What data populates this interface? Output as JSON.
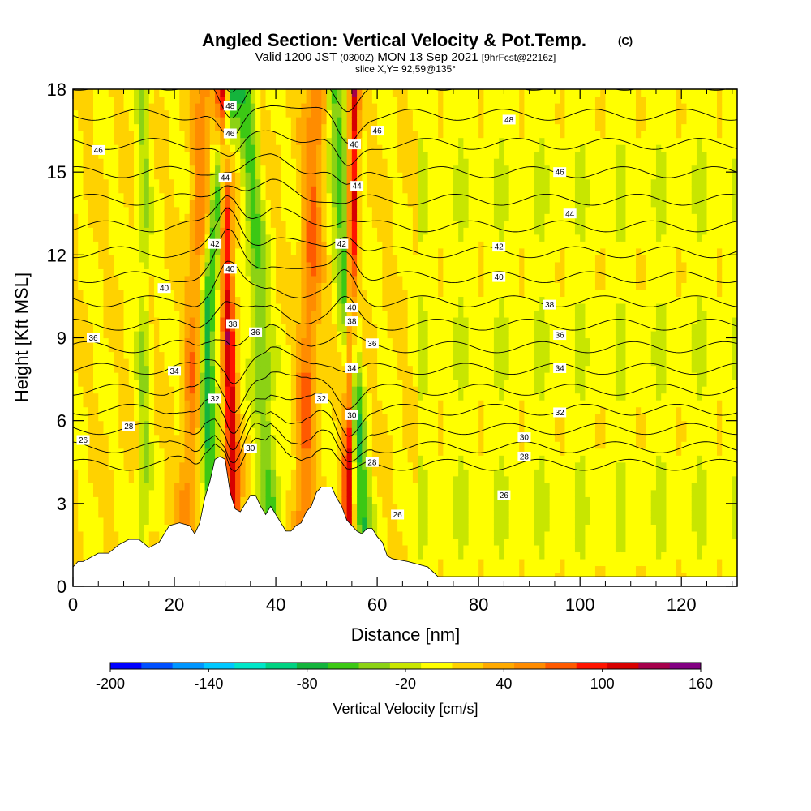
{
  "chart_data": {
    "type": "heatmap",
    "title": "Angled Section: Vertical Velocity & Pot.Temp.",
    "title_unit": "(C)",
    "subtitle": {
      "prefix": "Valid 1200 JST",
      "zulu": "(0300Z)",
      "date": "MON 13 Sep 2021",
      "forecast": "[9hrFcst@2216z]"
    },
    "slice_label": "slice X,Y= 92,59@135°",
    "xlabel": "Distance [nm]",
    "ylabel": "Height [Kft MSL]",
    "xlim": [
      0,
      131
    ],
    "ylim": [
      0,
      18
    ],
    "x_ticks": [
      0,
      20,
      40,
      60,
      80,
      100,
      120
    ],
    "y_ticks": [
      0,
      3,
      6,
      9,
      12,
      15,
      18
    ],
    "colorbar": {
      "title": "Vertical Velocity [cm/s]",
      "min": -200,
      "max": 160,
      "step": 20,
      "tick_values": [
        -200,
        -140,
        -80,
        -20,
        40,
        100,
        160
      ],
      "tick_labels": [
        "-200",
        "-140",
        "-80",
        "-20",
        "40",
        "100",
        "160"
      ],
      "colors": [
        "#0000ff",
        "#0050ff",
        "#0096ff",
        "#00c8ff",
        "#00e6c8",
        "#00d282",
        "#14b43c",
        "#3cc814",
        "#8cd214",
        "#c8e600",
        "#ffff00",
        "#ffd200",
        "#ffaa00",
        "#ff8c00",
        "#ff5a00",
        "#ff1400",
        "#d70000",
        "#a5004b",
        "#820082"
      ]
    },
    "terrain": [
      [
        0,
        0.7
      ],
      [
        1,
        0.9
      ],
      [
        2,
        0.9
      ],
      [
        5,
        1.2
      ],
      [
        7,
        1.2
      ],
      [
        9,
        1.5
      ],
      [
        11,
        1.7
      ],
      [
        13,
        1.7
      ],
      [
        15,
        1.4
      ],
      [
        17,
        1.6
      ],
      [
        19,
        2.2
      ],
      [
        21,
        2.3
      ],
      [
        23,
        2.2
      ],
      [
        24,
        1.9
      ],
      [
        25,
        2.3
      ],
      [
        26,
        3.2
      ],
      [
        27,
        3.8
      ],
      [
        28,
        4.6
      ],
      [
        29,
        4.7
      ],
      [
        30,
        4.6
      ],
      [
        31,
        3.4
      ],
      [
        32,
        2.8
      ],
      [
        33,
        2.7
      ],
      [
        34,
        3.0
      ],
      [
        35,
        3.3
      ],
      [
        36,
        3.3
      ],
      [
        37,
        2.9
      ],
      [
        38,
        2.6
      ],
      [
        39,
        2.9
      ],
      [
        40,
        2.6
      ],
      [
        41,
        2.3
      ],
      [
        42,
        2.0
      ],
      [
        43,
        2.0
      ],
      [
        44,
        2.2
      ],
      [
        45,
        2.3
      ],
      [
        46,
        2.7
      ],
      [
        47,
        2.9
      ],
      [
        48,
        3.4
      ],
      [
        49,
        3.6
      ],
      [
        50,
        3.6
      ],
      [
        51,
        3.6
      ],
      [
        52,
        3.2
      ],
      [
        53,
        2.9
      ],
      [
        54,
        2.4
      ],
      [
        55,
        2.2
      ],
      [
        56,
        2.0
      ],
      [
        57,
        1.9
      ],
      [
        58,
        2.1
      ],
      [
        59,
        2.1
      ],
      [
        60,
        1.8
      ],
      [
        61,
        1.6
      ],
      [
        62,
        1.1
      ],
      [
        63,
        1.0
      ],
      [
        66,
        0.9
      ],
      [
        70,
        0.7
      ],
      [
        72,
        0.35
      ],
      [
        131,
        0.35
      ]
    ],
    "velocity_bands": [
      {
        "name": "downdraft-a",
        "x0": 28.5,
        "x1": 31.5,
        "lean": -3.5,
        "value": -90,
        "halfwidth": 1.6
      },
      {
        "name": "updraft-a",
        "x0": 32.0,
        "x1": 29.5,
        "lean": 0,
        "value": 110,
        "halfwidth": 1.3
      },
      {
        "name": "downdraft-b",
        "x0": 40.0,
        "x1": 34.0,
        "lean": 0,
        "value": -60,
        "halfwidth": 2.0
      },
      {
        "name": "downdraft-c",
        "x0": 58.0,
        "x1": 51.5,
        "lean": 0,
        "value": -80,
        "halfwidth": 1.7
      },
      {
        "name": "updraft-b",
        "x0": 54.0,
        "x1": 55.5,
        "lean": 0,
        "value": 120,
        "halfwidth": 1.0
      },
      {
        "name": "updraft-c",
        "x0": 45.0,
        "x1": 48.0,
        "lean": 0,
        "value": 60,
        "halfwidth": 2.0
      },
      {
        "name": "updraft-d",
        "x0": 22.0,
        "x1": 26.0,
        "lean": 0,
        "value": 50,
        "halfwidth": 2.0
      },
      {
        "name": "downdraft-d",
        "x0": 14.0,
        "x1": 14.0,
        "lean": 0,
        "value": -40,
        "halfwidth": 1.2
      }
    ],
    "theta_levels": [
      26,
      27,
      28,
      29,
      30,
      31,
      32,
      33,
      34,
      35,
      36,
      37,
      38,
      39,
      40,
      41,
      42,
      43,
      44,
      45,
      46,
      47,
      48
    ],
    "theta_labels": [
      {
        "text": "26",
        "x": 2,
        "y": 5.3
      },
      {
        "text": "28",
        "x": 11,
        "y": 5.8
      },
      {
        "text": "32",
        "x": 28,
        "y": 6.8
      },
      {
        "text": "34",
        "x": 20,
        "y": 7.8
      },
      {
        "text": "36",
        "x": 4,
        "y": 9.0
      },
      {
        "text": "40",
        "x": 18,
        "y": 10.8
      },
      {
        "text": "46",
        "x": 5,
        "y": 15.8
      },
      {
        "text": "48",
        "x": 31,
        "y": 17.4
      },
      {
        "text": "46",
        "x": 31,
        "y": 16.4
      },
      {
        "text": "44",
        "x": 30,
        "y": 14.8
      },
      {
        "text": "42",
        "x": 28,
        "y": 12.4
      },
      {
        "text": "40",
        "x": 31,
        "y": 11.5
      },
      {
        "text": "38",
        "x": 31.5,
        "y": 9.5
      },
      {
        "text": "36",
        "x": 36,
        "y": 9.2
      },
      {
        "text": "30",
        "x": 35,
        "y": 5.0
      },
      {
        "text": "32",
        "x": 49,
        "y": 6.8
      },
      {
        "text": "42",
        "x": 53,
        "y": 12.4
      },
      {
        "text": "40",
        "x": 55,
        "y": 10.1
      },
      {
        "text": "38",
        "x": 55,
        "y": 9.6
      },
      {
        "text": "36",
        "x": 59,
        "y": 8.8
      },
      {
        "text": "34",
        "x": 55,
        "y": 7.9
      },
      {
        "text": "30",
        "x": 55,
        "y": 6.2
      },
      {
        "text": "28",
        "x": 59,
        "y": 4.5
      },
      {
        "text": "26",
        "x": 64,
        "y": 2.6
      },
      {
        "text": "46",
        "x": 55.5,
        "y": 16.0
      },
      {
        "text": "44",
        "x": 56,
        "y": 14.5
      },
      {
        "text": "46",
        "x": 60,
        "y": 16.5
      },
      {
        "text": "48",
        "x": 86,
        "y": 16.9
      },
      {
        "text": "46",
        "x": 96,
        "y": 15.0
      },
      {
        "text": "44",
        "x": 98,
        "y": 13.5
      },
      {
        "text": "42",
        "x": 84,
        "y": 12.3
      },
      {
        "text": "40",
        "x": 84,
        "y": 11.2
      },
      {
        "text": "38",
        "x": 94,
        "y": 10.2
      },
      {
        "text": "36",
        "x": 96,
        "y": 9.1
      },
      {
        "text": "34",
        "x": 96,
        "y": 7.9
      },
      {
        "text": "32",
        "x": 96,
        "y": 6.3
      },
      {
        "text": "30",
        "x": 89,
        "y": 5.4
      },
      {
        "text": "28",
        "x": 89,
        "y": 4.7
      },
      {
        "text": "26",
        "x": 85,
        "y": 3.3
      }
    ]
  }
}
